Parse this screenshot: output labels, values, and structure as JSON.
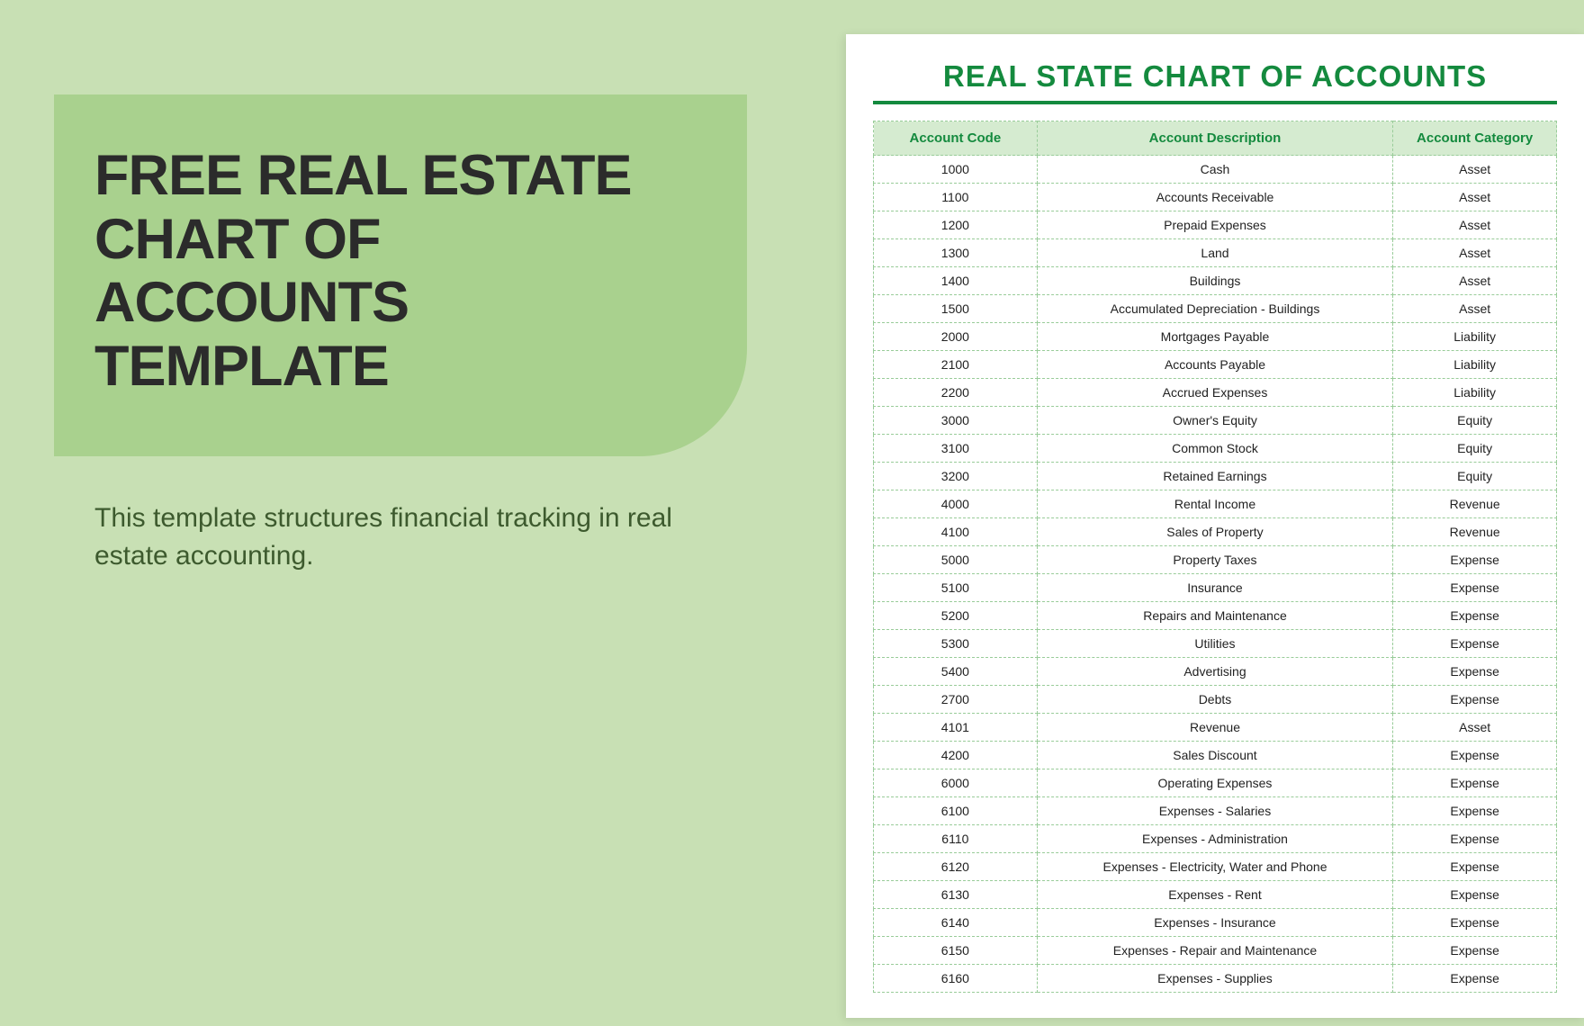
{
  "colors": {
    "page_bg": "#c8e0b4",
    "title_card_bg": "#a9d18e",
    "title_text": "#2b2b2b",
    "subtitle_text": "#3d5a2e",
    "doc_bg": "#ffffff",
    "doc_title": "#148a3e",
    "table_header_bg": "#d5ebd0",
    "table_border": "#99cc99",
    "table_text": "#222222"
  },
  "left": {
    "title": "FREE REAL ESTATE CHART OF ACCOUNTS TEMPLATE",
    "subtitle": "This template structures financial tracking in real estate accounting."
  },
  "document": {
    "title": "REAL STATE CHART OF ACCOUNTS",
    "columns": [
      "Account Code",
      "Account Description",
      "Account Category"
    ],
    "rows": [
      [
        "1000",
        "Cash",
        "Asset"
      ],
      [
        "1100",
        "Accounts Receivable",
        "Asset"
      ],
      [
        "1200",
        "Prepaid Expenses",
        "Asset"
      ],
      [
        "1300",
        "Land",
        "Asset"
      ],
      [
        "1400",
        "Buildings",
        "Asset"
      ],
      [
        "1500",
        "Accumulated Depreciation - Buildings",
        "Asset"
      ],
      [
        "2000",
        "Mortgages Payable",
        "Liability"
      ],
      [
        "2100",
        "Accounts Payable",
        "Liability"
      ],
      [
        "2200",
        "Accrued Expenses",
        "Liability"
      ],
      [
        "3000",
        "Owner's Equity",
        "Equity"
      ],
      [
        "3100",
        "Common Stock",
        "Equity"
      ],
      [
        "3200",
        "Retained Earnings",
        "Equity"
      ],
      [
        "4000",
        "Rental Income",
        "Revenue"
      ],
      [
        "4100",
        "Sales of Property",
        "Revenue"
      ],
      [
        "5000",
        "Property Taxes",
        "Expense"
      ],
      [
        "5100",
        "Insurance",
        "Expense"
      ],
      [
        "5200",
        "Repairs and Maintenance",
        "Expense"
      ],
      [
        "5300",
        "Utilities",
        "Expense"
      ],
      [
        "5400",
        "Advertising",
        "Expense"
      ],
      [
        "2700",
        "Debts",
        "Expense"
      ],
      [
        "4101",
        "Revenue",
        "Asset"
      ],
      [
        "4200",
        "Sales Discount",
        "Expense"
      ],
      [
        "6000",
        "Operating Expenses",
        "Expense"
      ],
      [
        "6100",
        "Expenses - Salaries",
        "Expense"
      ],
      [
        "6110",
        "Expenses - Administration",
        "Expense"
      ],
      [
        "6120",
        "Expenses - Electricity, Water and  Phone",
        "Expense"
      ],
      [
        "6130",
        "Expenses - Rent",
        "Expense"
      ],
      [
        "6140",
        "Expenses - Insurance",
        "Expense"
      ],
      [
        "6150",
        "Expenses - Repair and Maintenance",
        "Expense"
      ],
      [
        "6160",
        "Expenses - Supplies",
        "Expense"
      ]
    ]
  }
}
